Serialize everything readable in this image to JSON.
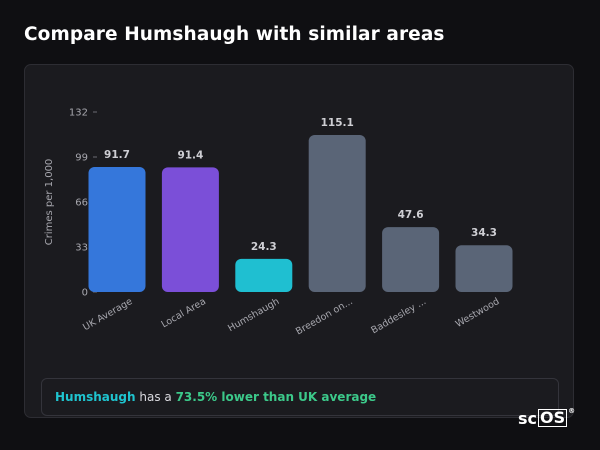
{
  "page": {
    "title": "Compare Humshaugh with similar areas"
  },
  "chart_data": {
    "type": "bar",
    "categories": [
      "UK Average",
      "Local Area",
      "Humshaugh",
      "Breedon on...",
      "Baddesley ...",
      "Westwood"
    ],
    "values": [
      91.7,
      91.4,
      24.3,
      115.1,
      47.6,
      34.3
    ],
    "value_labels": [
      "91.7",
      "91.4",
      "24.3",
      "115.1",
      "47.6",
      "34.3"
    ],
    "colors": [
      "#3577db",
      "#7b4fd8",
      "#1fbfd1",
      "#5a6577",
      "#5a6577",
      "#5a6577"
    ],
    "ylabel": "Crimes per 1,000",
    "xlabel": "",
    "ylim": [
      0,
      132
    ],
    "yticks": [
      0,
      33,
      66,
      99,
      132
    ],
    "grid": false,
    "legend": "none"
  },
  "note": {
    "area": "Humshaugh",
    "middle": " has a ",
    "comparison": "73.5% lower than UK average"
  },
  "logo": {
    "brand_prefix": "sc",
    "brand_box": "OS",
    "mark": "®"
  }
}
